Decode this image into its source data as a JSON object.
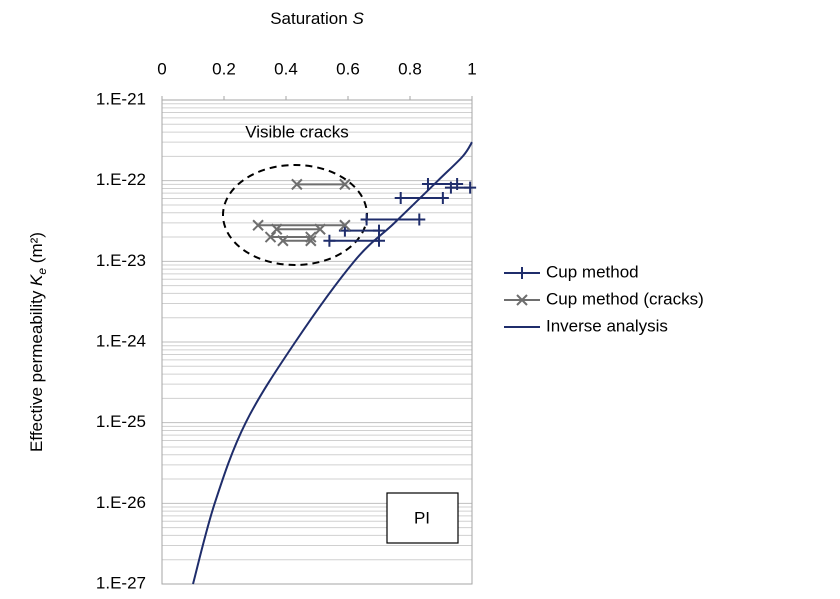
{
  "chart_data": {
    "type": "scatter",
    "x_label": [
      "Saturation ",
      "S"
    ],
    "y_label": [
      "Effective permeability ",
      "K",
      "e",
      " (m²)"
    ],
    "xlim": [
      0,
      1
    ],
    "xticks": [
      0,
      0.2,
      0.4,
      0.6,
      0.8,
      1
    ],
    "ylim": [
      1e-27,
      1e-21
    ],
    "yticks": [
      {
        "value": 1e-21,
        "label": "1.E-21"
      },
      {
        "value": 1e-22,
        "label": "1.E-22"
      },
      {
        "value": 1e-23,
        "label": "1.E-23"
      },
      {
        "value": 1e-24,
        "label": "1.E-24"
      },
      {
        "value": 1e-25,
        "label": "1.E-25"
      },
      {
        "value": 1e-26,
        "label": "1.E-26"
      },
      {
        "value": 1e-27,
        "label": "1.E-27"
      }
    ],
    "log_y": true,
    "grid": true,
    "minor_grid": true,
    "legend_position": "right",
    "annotations": [
      "Visible cracks",
      "PI"
    ],
    "series": [
      {
        "name": "Cup method",
        "color": "#1f2d6b",
        "marker": "plus",
        "smooth": false,
        "x": [
          0.858,
          0.952,
          null,
          0.932,
          0.994,
          null,
          0.77,
          0.906,
          null,
          0.66,
          0.83,
          null,
          0.59,
          0.7,
          null,
          0.54,
          0.7
        ],
        "values": [
          9.1e-23,
          9.1e-23,
          null,
          8.2e-23,
          8.2e-23,
          null,
          6.1e-23,
          6.1e-23,
          null,
          3.3e-23,
          3.3e-23,
          null,
          2.4e-23,
          2.4e-23,
          null,
          1.8e-23,
          1.8e-23
        ]
      },
      {
        "name": "Cup method (cracks)",
        "color": "#6e6e6e",
        "marker": "cross",
        "smooth": false,
        "x": [
          0.435,
          0.59,
          null,
          0.31,
          0.59,
          null,
          0.37,
          0.51,
          null,
          0.35,
          0.48,
          null,
          0.39,
          0.48
        ],
        "values": [
          9e-23,
          9e-23,
          null,
          2.8e-23,
          2.8e-23,
          null,
          2.5e-23,
          2.5e-23,
          null,
          2e-23,
          2e-23,
          null,
          1.8e-23,
          1.8e-23
        ]
      },
      {
        "name": "Inverse analysis",
        "color": "#1f2d6b",
        "marker": "none",
        "smooth": true,
        "x": [
          0.1,
          0.17,
          0.27,
          0.43,
          0.62,
          0.75,
          0.89,
          0.97,
          1.0
        ],
        "values": [
          1e-27,
          1e-26,
          1e-25,
          1e-24,
          1e-23,
          3e-23,
          1e-22,
          2e-22,
          3e-22
        ]
      }
    ]
  }
}
